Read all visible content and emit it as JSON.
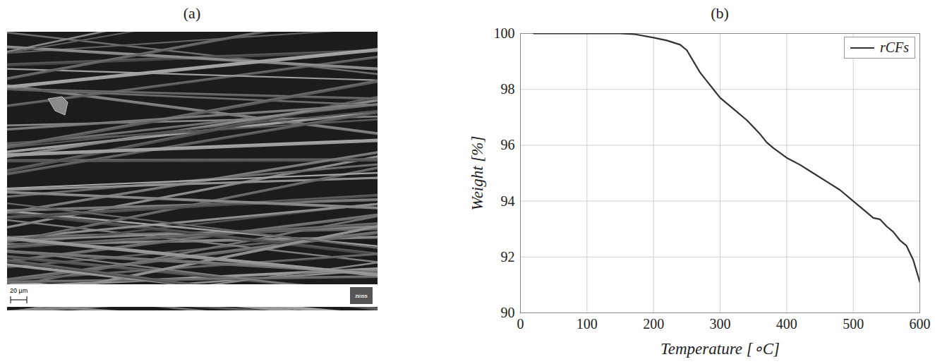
{
  "image_panel": {
    "title": "(a)",
    "scale_bar": "20 µm",
    "logo": "ZEISS"
  },
  "chart_data": {
    "type": "line",
    "title": "(b)",
    "x_label": "Temperature [∘C]",
    "y_label": "Weight [%]",
    "x": [
      20,
      50,
      100,
      150,
      170,
      200,
      220,
      240,
      250,
      260,
      270,
      280,
      290,
      300,
      320,
      340,
      360,
      370,
      380,
      400,
      420,
      440,
      460,
      480,
      500,
      520,
      530,
      540,
      550,
      560,
      570,
      580,
      590,
      600
    ],
    "series": [
      {
        "name": "rCFs",
        "color": "#333333",
        "values": [
          100,
          100,
          100,
          100,
          99.98,
          99.85,
          99.75,
          99.6,
          99.4,
          99.0,
          98.6,
          98.3,
          98.0,
          97.7,
          97.3,
          96.9,
          96.4,
          96.1,
          95.9,
          95.55,
          95.3,
          95.0,
          94.7,
          94.4,
          94.0,
          93.6,
          93.4,
          93.35,
          93.1,
          92.9,
          92.6,
          92.4,
          91.9,
          91.1
        ]
      }
    ],
    "xlim": [
      0,
      600
    ],
    "ylim": [
      90,
      100
    ],
    "xticks": [
      0,
      100,
      200,
      300,
      400,
      500,
      600
    ],
    "yticks": [
      90,
      92,
      94,
      96,
      98,
      100
    ],
    "grid": true,
    "legend": "northeast"
  }
}
